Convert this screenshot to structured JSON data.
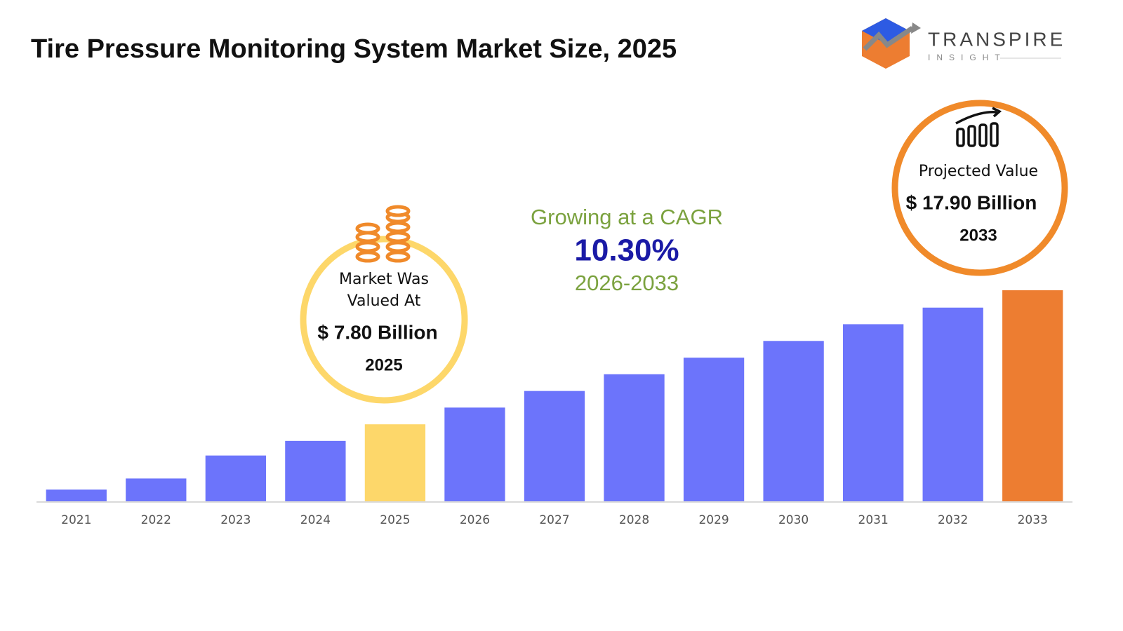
{
  "chart_data": {
    "type": "bar",
    "title": "Tire Pressure Monitoring System Market Size, 2025",
    "categories": [
      "2021",
      "2022",
      "2023",
      "2024",
      "2025",
      "2026",
      "2027",
      "2028",
      "2029",
      "2030",
      "2031",
      "2032",
      "2033"
    ],
    "values": [
      2.88,
      3.72,
      5.45,
      6.55,
      7.8,
      9.06,
      10.31,
      11.57,
      12.82,
      14.08,
      15.34,
      16.59,
      17.9
    ],
    "colors": [
      "#6c74fb",
      "#6c74fb",
      "#6c74fb",
      "#6c74fb",
      "#fdd76a",
      "#6c74fb",
      "#6c74fb",
      "#6c74fb",
      "#6c74fb",
      "#6c74fb",
      "#6c74fb",
      "#6c74fb",
      "#ed7d31"
    ],
    "ylim": [
      2.0,
      17.95
    ],
    "left_callout": {
      "lines": [
        "Market Was",
        "Valued At"
      ],
      "value": "$ 7.80 Billion",
      "year": "2025"
    },
    "cagr": {
      "label": "Growing at a CAGR",
      "value": "10.30%",
      "period": "2026-2033"
    },
    "right_callout": {
      "label": "Projected Value",
      "value": "$ 17.90 Billion",
      "year": "2033"
    }
  },
  "logo": {
    "name": "TRANSPIRE",
    "tagline": "INSIGHT"
  }
}
